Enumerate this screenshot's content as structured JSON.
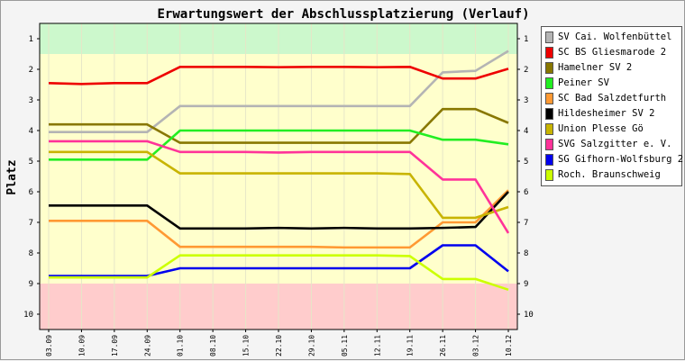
{
  "chart_data": {
    "type": "line",
    "title": "Erwartungswert der Abschlussplatzierung (Verlauf)",
    "ylabel": "Platz",
    "xlabel": "",
    "ylim": [
      0.5,
      10.5
    ],
    "y_reversed": true,
    "y_ticks": [
      1,
      2,
      3,
      4,
      5,
      6,
      7,
      8,
      9,
      10
    ],
    "categories": [
      "03.09",
      "10.09",
      "17.09",
      "24.09",
      "01.10",
      "08.10",
      "15.10",
      "22.10",
      "29.10",
      "05.11",
      "12.11",
      "19.11",
      "26.11",
      "03.12",
      "10.12"
    ],
    "bands": [
      {
        "from": 0.5,
        "to": 1.5,
        "color": "#ccf8cc"
      },
      {
        "from": 1.5,
        "to": 9.0,
        "color": "#ffffcc"
      },
      {
        "from": 9.0,
        "to": 10.5,
        "color": "#ffcccc"
      }
    ],
    "legend_position": "right",
    "series": [
      {
        "name": "SV Cai. Wolfenbüttel",
        "color": "#b4b4b4",
        "values": [
          4.05,
          4.05,
          4.05,
          4.05,
          3.2,
          3.2,
          3.2,
          3.2,
          3.2,
          3.2,
          3.2,
          3.2,
          2.1,
          2.05,
          1.4
        ]
      },
      {
        "name": "SC BS Gliesmarode 2",
        "color": "#ee0000",
        "values": [
          2.45,
          2.48,
          2.45,
          2.45,
          1.92,
          1.92,
          1.92,
          1.93,
          1.92,
          1.92,
          1.93,
          1.92,
          2.3,
          2.3,
          1.98
        ]
      },
      {
        "name": "Hamelner SV 2",
        "color": "#887700",
        "values": [
          3.8,
          3.8,
          3.8,
          3.8,
          4.4,
          4.4,
          4.4,
          4.4,
          4.4,
          4.4,
          4.4,
          4.4,
          3.3,
          3.3,
          3.75
        ]
      },
      {
        "name": "Peiner SV",
        "color": "#22ee22",
        "values": [
          4.95,
          4.95,
          4.95,
          4.95,
          4.0,
          4.0,
          4.0,
          4.0,
          4.0,
          4.0,
          4.0,
          4.0,
          4.3,
          4.3,
          4.45
        ]
      },
      {
        "name": "SC Bad Salzdetfurth",
        "color": "#ff9933",
        "values": [
          6.95,
          6.95,
          6.95,
          6.95,
          7.8,
          7.8,
          7.8,
          7.8,
          7.8,
          7.82,
          7.82,
          7.82,
          7.0,
          7.0,
          5.95
        ]
      },
      {
        "name": "Hildesheimer SV 2",
        "color": "#000000",
        "values": [
          6.45,
          6.45,
          6.45,
          6.45,
          7.2,
          7.2,
          7.2,
          7.18,
          7.2,
          7.18,
          7.2,
          7.2,
          7.18,
          7.15,
          6.0
        ]
      },
      {
        "name": "Union Plesse Gö",
        "color": "#c8b400",
        "values": [
          4.7,
          4.7,
          4.7,
          4.7,
          5.4,
          5.4,
          5.4,
          5.4,
          5.4,
          5.4,
          5.4,
          5.42,
          6.85,
          6.85,
          6.5
        ]
      },
      {
        "name": "SVG Salzgitter e. V.",
        "color": "#ff3399",
        "values": [
          4.35,
          4.35,
          4.35,
          4.35,
          4.7,
          4.7,
          4.7,
          4.72,
          4.7,
          4.7,
          4.7,
          4.7,
          5.6,
          5.6,
          7.35
        ]
      },
      {
        "name": "SG Gifhorn-Wolfsburg 2",
        "color": "#0000ee",
        "values": [
          8.75,
          8.75,
          8.75,
          8.75,
          8.5,
          8.5,
          8.5,
          8.5,
          8.5,
          8.5,
          8.5,
          8.5,
          7.75,
          7.75,
          8.6
        ]
      },
      {
        "name": "Roch. Braunschweig",
        "color": "#ccff00",
        "values": [
          8.8,
          8.8,
          8.8,
          8.8,
          8.08,
          8.08,
          8.08,
          8.08,
          8.08,
          8.08,
          8.08,
          8.1,
          8.85,
          8.85,
          9.2
        ]
      }
    ]
  }
}
